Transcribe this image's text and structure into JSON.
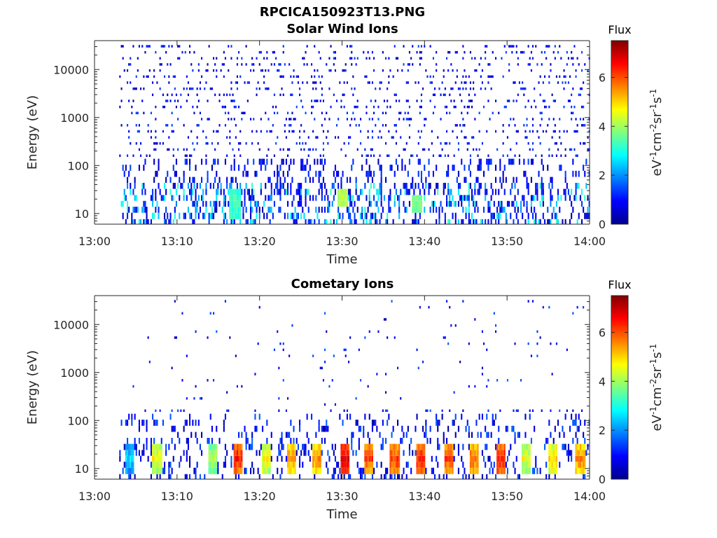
{
  "figure": {
    "title": "RPCICA150923T13.PNG"
  },
  "colormap": "jet",
  "chart_data": [
    {
      "type": "heatmap",
      "title": "Solar Wind Ions",
      "xlabel": "Time",
      "ylabel": "Energy (eV)",
      "x_ticks": [
        "13:00",
        "13:10",
        "13:20",
        "13:30",
        "13:40",
        "13:50",
        "14:00"
      ],
      "x_range": [
        "13:00",
        "14:00"
      ],
      "y_scale": "log",
      "y_ticks": [
        10,
        100,
        1000,
        10000
      ],
      "y_range": [
        6,
        40000
      ],
      "colorbar": {
        "title": "Flux",
        "label": "eV-1cm-2sr-1s-1",
        "ticks": [
          0,
          2,
          4,
          6
        ],
        "range": [
          0,
          7.5
        ]
      },
      "energy_bins_eV": [
        6.5,
        9,
        12,
        16,
        21,
        28,
        38,
        50,
        67,
        90,
        120,
        160,
        215,
        290,
        385,
        515,
        690,
        925,
        1240,
        1660,
        2220,
        2970,
        3980,
        5330,
        7130,
        9550,
        12800,
        17100,
        22900,
        30600
      ],
      "data_start": "13:03",
      "notable_events": [
        {
          "time": "13:30",
          "energy_eV": [
            16,
            28
          ],
          "flux": 4.5
        },
        {
          "time": "13:17",
          "energy_eV": [
            9,
            28
          ],
          "flux": 3.5
        },
        {
          "time": "13:39",
          "energy_eV": [
            12,
            21
          ],
          "flux": 4.0
        }
      ]
    },
    {
      "type": "heatmap",
      "title": "Cometary Ions",
      "xlabel": "Time",
      "ylabel": "Energy (eV)",
      "x_ticks": [
        "13:00",
        "13:10",
        "13:20",
        "13:30",
        "13:40",
        "13:50",
        "14:00"
      ],
      "x_range": [
        "13:00",
        "14:00"
      ],
      "y_scale": "log",
      "y_ticks": [
        10,
        100,
        1000,
        10000
      ],
      "y_range": [
        6,
        40000
      ],
      "colorbar": {
        "title": "Flux",
        "label": "eV-1cm-2sr-1s-1",
        "ticks": [
          0,
          2,
          4,
          6
        ],
        "range": [
          0,
          7.5
        ]
      },
      "energy_bins_eV": [
        6.5,
        9,
        12,
        16,
        21,
        28,
        38,
        50,
        67,
        90,
        120,
        160,
        215,
        290,
        385,
        515,
        690,
        925,
        1240,
        1660,
        2220,
        2970,
        3980,
        5330,
        7130,
        9550,
        12800,
        17100,
        22900,
        30600
      ],
      "data_start": "13:03",
      "bursts": [
        {
          "time": "13:04.2",
          "flux": 3.0
        },
        {
          "time": "13:07.5",
          "flux": 5.0
        },
        {
          "time": "13:14.2",
          "flux": 4.5
        },
        {
          "time": "13:17.3",
          "flux": 6.8
        },
        {
          "time": "13:20.8",
          "flux": 5.2
        },
        {
          "time": "13:23.8",
          "flux": 5.8
        },
        {
          "time": "13:26.8",
          "flux": 6.0
        },
        {
          "time": "13:30.2",
          "flux": 7.2
        },
        {
          "time": "13:33.2",
          "flux": 6.5
        },
        {
          "time": "13:36.3",
          "flux": 6.5
        },
        {
          "time": "13:39.5",
          "flux": 6.8
        },
        {
          "time": "13:42.8",
          "flux": 6.5
        },
        {
          "time": "13:46.0",
          "flux": 6.2
        },
        {
          "time": "13:49.2",
          "flux": 6.8
        },
        {
          "time": "13:52.2",
          "flux": 5.0
        },
        {
          "time": "13:55.5",
          "flux": 5.5
        },
        {
          "time": "13:58.8",
          "flux": 6.0
        }
      ],
      "burst_energy_eV": [
        8,
        32
      ]
    }
  ]
}
